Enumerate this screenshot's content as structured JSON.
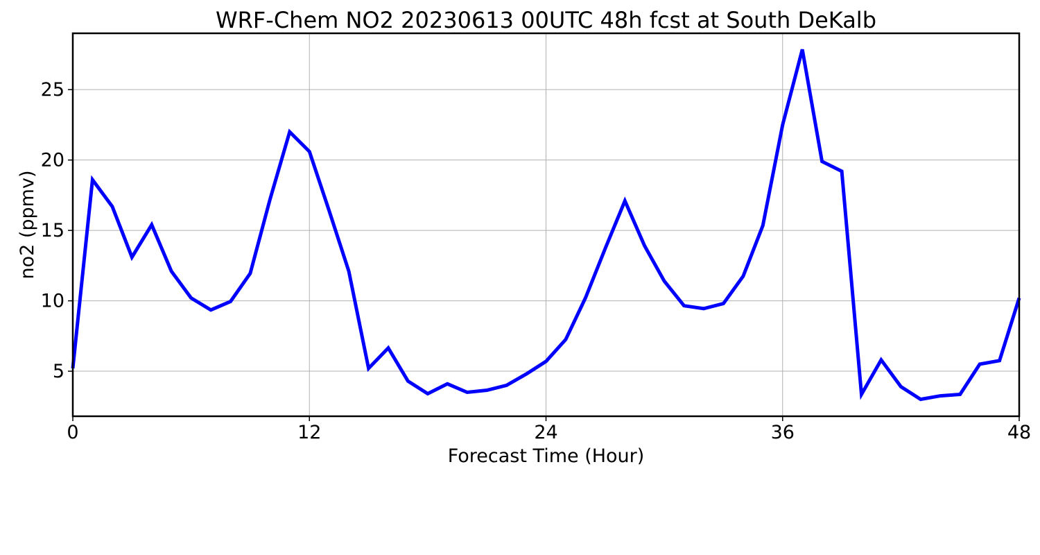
{
  "chart_data": {
    "type": "line",
    "title": "WRF-Chem NO2  20230613 00UTC 48h fcst at South DeKalb",
    "xlabel": "Forecast Time (Hour)",
    "ylabel": "no2  (ppmv)",
    "xlim": [
      0,
      48
    ],
    "ylim": [
      1.8,
      29.0
    ],
    "x_ticks": [
      0,
      12,
      24,
      36,
      48
    ],
    "y_ticks": [
      5,
      10,
      15,
      20,
      25
    ],
    "grid": true,
    "line_color": "#0000ff",
    "x": [
      0,
      1,
      2,
      3,
      4,
      5,
      6,
      7,
      8,
      9,
      10,
      11,
      12,
      13,
      14,
      15,
      16,
      17,
      18,
      19,
      20,
      21,
      22,
      23,
      24,
      25,
      26,
      27,
      28,
      29,
      30,
      31,
      32,
      33,
      34,
      35,
      36,
      37,
      38,
      39,
      40,
      41,
      42,
      43,
      44,
      45,
      46,
      47,
      48
    ],
    "series": [
      {
        "values": [
          5.2,
          18.6,
          16.7,
          13.1,
          15.4,
          12.1,
          10.2,
          9.35,
          9.95,
          11.95,
          17.2,
          22.0,
          20.6,
          16.4,
          12.1,
          5.2,
          6.65,
          4.3,
          3.4,
          4.1,
          3.5,
          3.65,
          4.0,
          4.8,
          5.7,
          7.25,
          10.2,
          13.7,
          17.1,
          13.9,
          11.4,
          9.65,
          9.45,
          9.8,
          11.75,
          15.35,
          22.5,
          27.85,
          19.9,
          19.2,
          3.35,
          5.8,
          3.9,
          3.0,
          3.25,
          3.35,
          5.5,
          5.75,
          10.2
        ]
      }
    ]
  }
}
